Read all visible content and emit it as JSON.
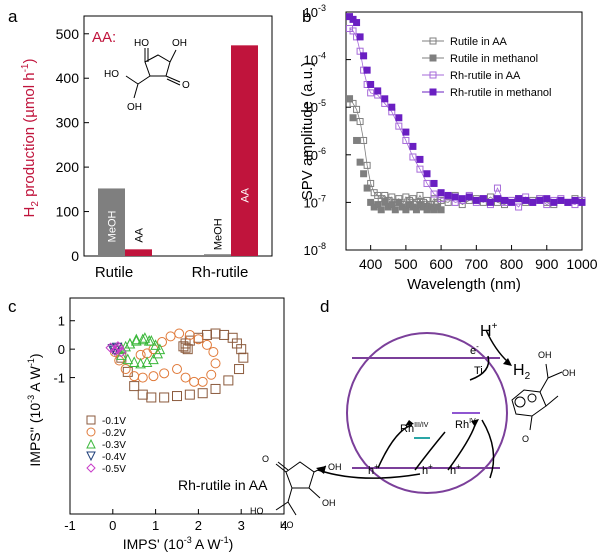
{
  "panels": {
    "a": "a",
    "b": "b",
    "c": "c",
    "d": "d"
  },
  "colors": {
    "grey": "#7f7f7f",
    "crimson": "#c0143c",
    "purple": "#6a1fc2",
    "lightpurple": "#a66ad9",
    "brown": "#8b5a3c",
    "orange": "#e07a3a",
    "green": "#3cb83c",
    "navy": "#1f3f7a",
    "magenta": "#c83cc8",
    "circle": "#7b3f9a"
  },
  "chart_data": [
    {
      "type": "bar",
      "panel": "a",
      "ylabel_prefix": "H",
      "ylabel_sub": "2",
      "ylabel_rest": " production (µmol h",
      "ylabel_sup": "-1",
      "ylabel_end": ")",
      "annotation": "AA:",
      "categories": [
        "Rutile",
        "Rh-rutile"
      ],
      "series": [
        {
          "name": "MeOH",
          "values": [
            152,
            4
          ]
        },
        {
          "name": "AA",
          "values": [
            15,
            474
          ]
        }
      ],
      "bar_labels": [
        [
          "MeOH",
          "AA"
        ],
        [
          "MeOH",
          "AA"
        ]
      ],
      "ylim": [
        0,
        540
      ],
      "yticks": [
        "0",
        "100",
        "200",
        "300",
        "400",
        "500"
      ],
      "molecule_labels": {
        "ho1": "HO",
        "oh1": "OH",
        "ho2": "HO",
        "oh2": "OH"
      }
    },
    {
      "type": "scatter",
      "panel": "b",
      "ylabel": "SPV amplitude (a.u.)",
      "xlabel": "Wavelength (nm)",
      "xlim": [
        330,
        1000
      ],
      "ylim_log10": [
        -8,
        -3
      ],
      "xticks": [
        "400",
        "500",
        "600",
        "700",
        "800",
        "900",
        "1000"
      ],
      "yticks_base": [
        "10",
        "10",
        "10",
        "10",
        "10",
        "10"
      ],
      "yticks_exp": [
        "-8",
        "-7",
        "-6",
        "-5",
        "-4",
        "-3"
      ],
      "legend": [
        "Rutile in AA",
        "Rutile in methanol",
        "Rh-rutile in AA",
        "Rh-rutile in methanol"
      ],
      "series": [
        {
          "name": "Rutile in AA",
          "x": [
            340,
            350,
            360,
            370,
            380,
            390,
            400,
            410,
            420,
            430,
            440,
            450,
            460,
            470,
            480,
            490,
            500,
            510,
            520,
            530,
            540,
            550,
            560,
            570,
            580,
            590,
            600,
            620,
            640,
            660,
            680,
            700,
            720,
            740,
            760,
            780,
            800,
            820,
            840,
            860,
            880,
            900,
            920,
            940,
            960,
            980,
            1000
          ],
          "y": [
            1.5e-05,
            1.2e-05,
            9e-06,
            5e-06,
            2e-06,
            6e-07,
            2.5e-07,
            1.6e-07,
            1.4e-07,
            1.2e-07,
            1.4e-07,
            1.1e-07,
            1.3e-07,
            1e-07,
            1.2e-07,
            9e-08,
            1.3e-07,
            1.1e-07,
            1.2e-07,
            1e-07,
            1.4e-07,
            1e-07,
            1.1e-07,
            9e-08,
            1.2e-07,
            1e-07,
            1.1e-07,
            1e-07,
            1.4e-07,
            9e-08,
            1.1e-07,
            1.2e-07,
            1e-07,
            1.3e-07,
            1e-07,
            9e-08,
            1.1e-07,
            1.2e-07,
            1e-07,
            1.1e-07,
            1.2e-07,
            1e-07,
            9e-08,
            1.1e-07,
            1e-07,
            1.2e-07,
            1.1e-07
          ]
        },
        {
          "name": "Rutile in methanol",
          "x": [
            340,
            350,
            360,
            370,
            380,
            390,
            400,
            410,
            420,
            430,
            440,
            450,
            460,
            470,
            480,
            490,
            500,
            510,
            520,
            530,
            540,
            550,
            560,
            570,
            580,
            590,
            600
          ],
          "y": [
            1.5e-05,
            6e-06,
            2e-06,
            7e-07,
            4e-07,
            2e-07,
            1e-07,
            8e-08,
            9e-08,
            7e-08,
            1e-07,
            8e-08,
            9e-08,
            7e-08,
            1e-07,
            8e-08,
            7e-08,
            9e-08,
            8e-08,
            7e-08,
            9e-08,
            8e-08,
            7e-08,
            8e-08,
            7e-08,
            8e-08,
            7e-08
          ]
        },
        {
          "name": "Rh-rutile in AA",
          "x": [
            340,
            350,
            360,
            370,
            380,
            390,
            400,
            420,
            440,
            460,
            480,
            500,
            520,
            540,
            560,
            580,
            600,
            620,
            640,
            660,
            680,
            700,
            720,
            740,
            760,
            780,
            800,
            820,
            840,
            860,
            880,
            900,
            920,
            940,
            960,
            980,
            1000
          ],
          "y": [
            0.00045,
            0.0004,
            0.0003,
            0.00015,
            6e-05,
            3e-05,
            2e-05,
            1.8e-05,
            1.2e-05,
            8e-06,
            4e-06,
            2e-06,
            9e-07,
            5e-07,
            2.5e-07,
            1.5e-07,
            1.2e-07,
            1.3e-07,
            1e-07,
            1.1e-07,
            1.4e-07,
            1e-07,
            1.2e-07,
            9e-08,
            2e-07,
            1e-07,
            1.1e-07,
            8e-08,
            1.3e-07,
            1e-07,
            1.2e-07,
            9e-08,
            1.1e-07,
            1.2e-07,
            1e-07,
            9e-08,
            1.1e-07
          ]
        },
        {
          "name": "Rh-rutile in methanol",
          "x": [
            340,
            350,
            360,
            370,
            380,
            390,
            400,
            420,
            440,
            460,
            480,
            500,
            520,
            540,
            560,
            580,
            600,
            620,
            640,
            660,
            680,
            700,
            720,
            740,
            760,
            780,
            800,
            820,
            840,
            860,
            880,
            900,
            920,
            940,
            960,
            980,
            1000
          ],
          "y": [
            0.0008,
            0.0007,
            0.0006,
            0.0003,
            0.00012,
            6e-05,
            3e-05,
            2.2e-05,
            1.5e-05,
            1e-05,
            6e-06,
            3e-06,
            1.5e-06,
            8e-07,
            4e-07,
            2.5e-07,
            1.6e-07,
            1.4e-07,
            1.3e-07,
            1.2e-07,
            1.3e-07,
            1.1e-07,
            1.2e-07,
            1e-07,
            1.2e-07,
            1.1e-07,
            1e-07,
            1.2e-07,
            1.1e-07,
            1e-07,
            1.1e-07,
            1.2e-07,
            1e-07,
            1.1e-07,
            1e-07,
            1.1e-07,
            1e-07
          ]
        }
      ]
    },
    {
      "type": "scatter",
      "panel": "c",
      "xlabel_main": "IMPS' (10",
      "xlabel_sup": "-3",
      "xlabel_end": " A W",
      "xlabel_sup2": "-1",
      "xlabel_close": ")",
      "ylabel_main": "IMPS'' (10",
      "ylabel_sup": "-3",
      "ylabel_end": " A W",
      "ylabel_sup2": "-1",
      "ylabel_close": ")",
      "annotation": "Rh-rutile in AA",
      "xlim": [
        -1,
        4
      ],
      "ylim": [
        -5.8,
        1.8
      ],
      "xticks": [
        "-1",
        "0",
        "1",
        "2",
        "3",
        "4"
      ],
      "yticks": [
        "-1",
        "0",
        "1"
      ],
      "legend": [
        "-0.1V",
        "-0.2V",
        "-0.3V",
        "-0.4V",
        "-0.5V"
      ],
      "series": [
        {
          "name": "-0.1V",
          "marker": "square",
          "x": [
            0.2,
            0.35,
            0.5,
            0.7,
            0.9,
            1.2,
            1.5,
            1.8,
            2.1,
            2.4,
            2.7,
            2.95,
            3.05,
            3.0,
            2.9,
            2.8,
            2.6,
            2.4,
            2.2,
            2.0,
            1.8,
            1.7,
            1.65,
            1.7,
            1.75
          ],
          "y": [
            -0.3,
            -0.8,
            -1.3,
            -1.6,
            -1.7,
            -1.7,
            -1.65,
            -1.6,
            -1.55,
            -1.4,
            -1.1,
            -0.7,
            -0.3,
            0.0,
            0.2,
            0.4,
            0.5,
            0.55,
            0.5,
            0.4,
            0.3,
            0.2,
            0.1,
            0.05,
            0.0
          ]
        },
        {
          "name": "-0.2V",
          "marker": "circle",
          "x": [
            0.05,
            0.15,
            0.3,
            0.5,
            0.7,
            0.95,
            1.2,
            1.5,
            1.7,
            1.9,
            2.1,
            2.3,
            2.4,
            2.35,
            2.2,
            2.0,
            1.8,
            1.55,
            1.35,
            1.15,
            0.95,
            0.8,
            0.65
          ],
          "y": [
            -0.1,
            -0.4,
            -0.7,
            -0.95,
            -1.0,
            -0.95,
            -0.85,
            -0.7,
            -1.0,
            -1.15,
            -1.15,
            -0.9,
            -0.5,
            -0.1,
            0.15,
            0.35,
            0.5,
            0.55,
            0.45,
            0.25,
            0.0,
            -0.15,
            -0.2
          ]
        },
        {
          "name": "-0.3V",
          "marker": "triangle-up",
          "x": [
            0.1,
            0.2,
            0.35,
            0.5,
            0.65,
            0.8,
            0.95,
            1.05,
            1.1,
            1.0,
            0.85,
            0.7,
            0.55,
            0.4,
            0.3,
            0.2,
            0.4,
            0.55,
            0.75,
            0.9
          ],
          "y": [
            0.0,
            -0.2,
            -0.35,
            -0.45,
            -0.5,
            -0.45,
            -0.35,
            -0.15,
            0.0,
            0.15,
            0.3,
            0.35,
            0.3,
            0.2,
            0.1,
            0.05,
            0.2,
            0.35,
            0.4,
            0.3
          ]
        },
        {
          "name": "-0.4V",
          "marker": "triangle-down",
          "x": [
            0.0,
            0.05,
            0.1
          ],
          "y": [
            0.0,
            -0.05,
            0.05
          ]
        },
        {
          "name": "-0.5V",
          "marker": "diamond",
          "x": [
            -0.05,
            0.05,
            0.1,
            0.15,
            0.2,
            0.12
          ],
          "y": [
            0.05,
            -0.05,
            0.0,
            0.05,
            -0.1,
            0.1
          ]
        }
      ]
    }
  ],
  "diagram_d": {
    "h_plus_top": "H",
    "h_plus_top_sup": "+",
    "h2": "H",
    "h2_sub": "2",
    "e_minus": "e",
    "e_minus_sup": "-",
    "ti": "Ti",
    "rh_mid": "Rh",
    "rh_mid_sup": "III/IV",
    "rh_right": "Rh",
    "rh_right_sup": "IV",
    "h_plus_1": "h",
    "h_plus_2": "h",
    "h_plus_3": "h",
    "h_plus_sup": "+",
    "left_oh": "OH",
    "left_ho1": "HO",
    "left_ho2": "HO",
    "left_oh2": "OH",
    "right_oh1": "OH",
    "right_oh2": "OH"
  }
}
